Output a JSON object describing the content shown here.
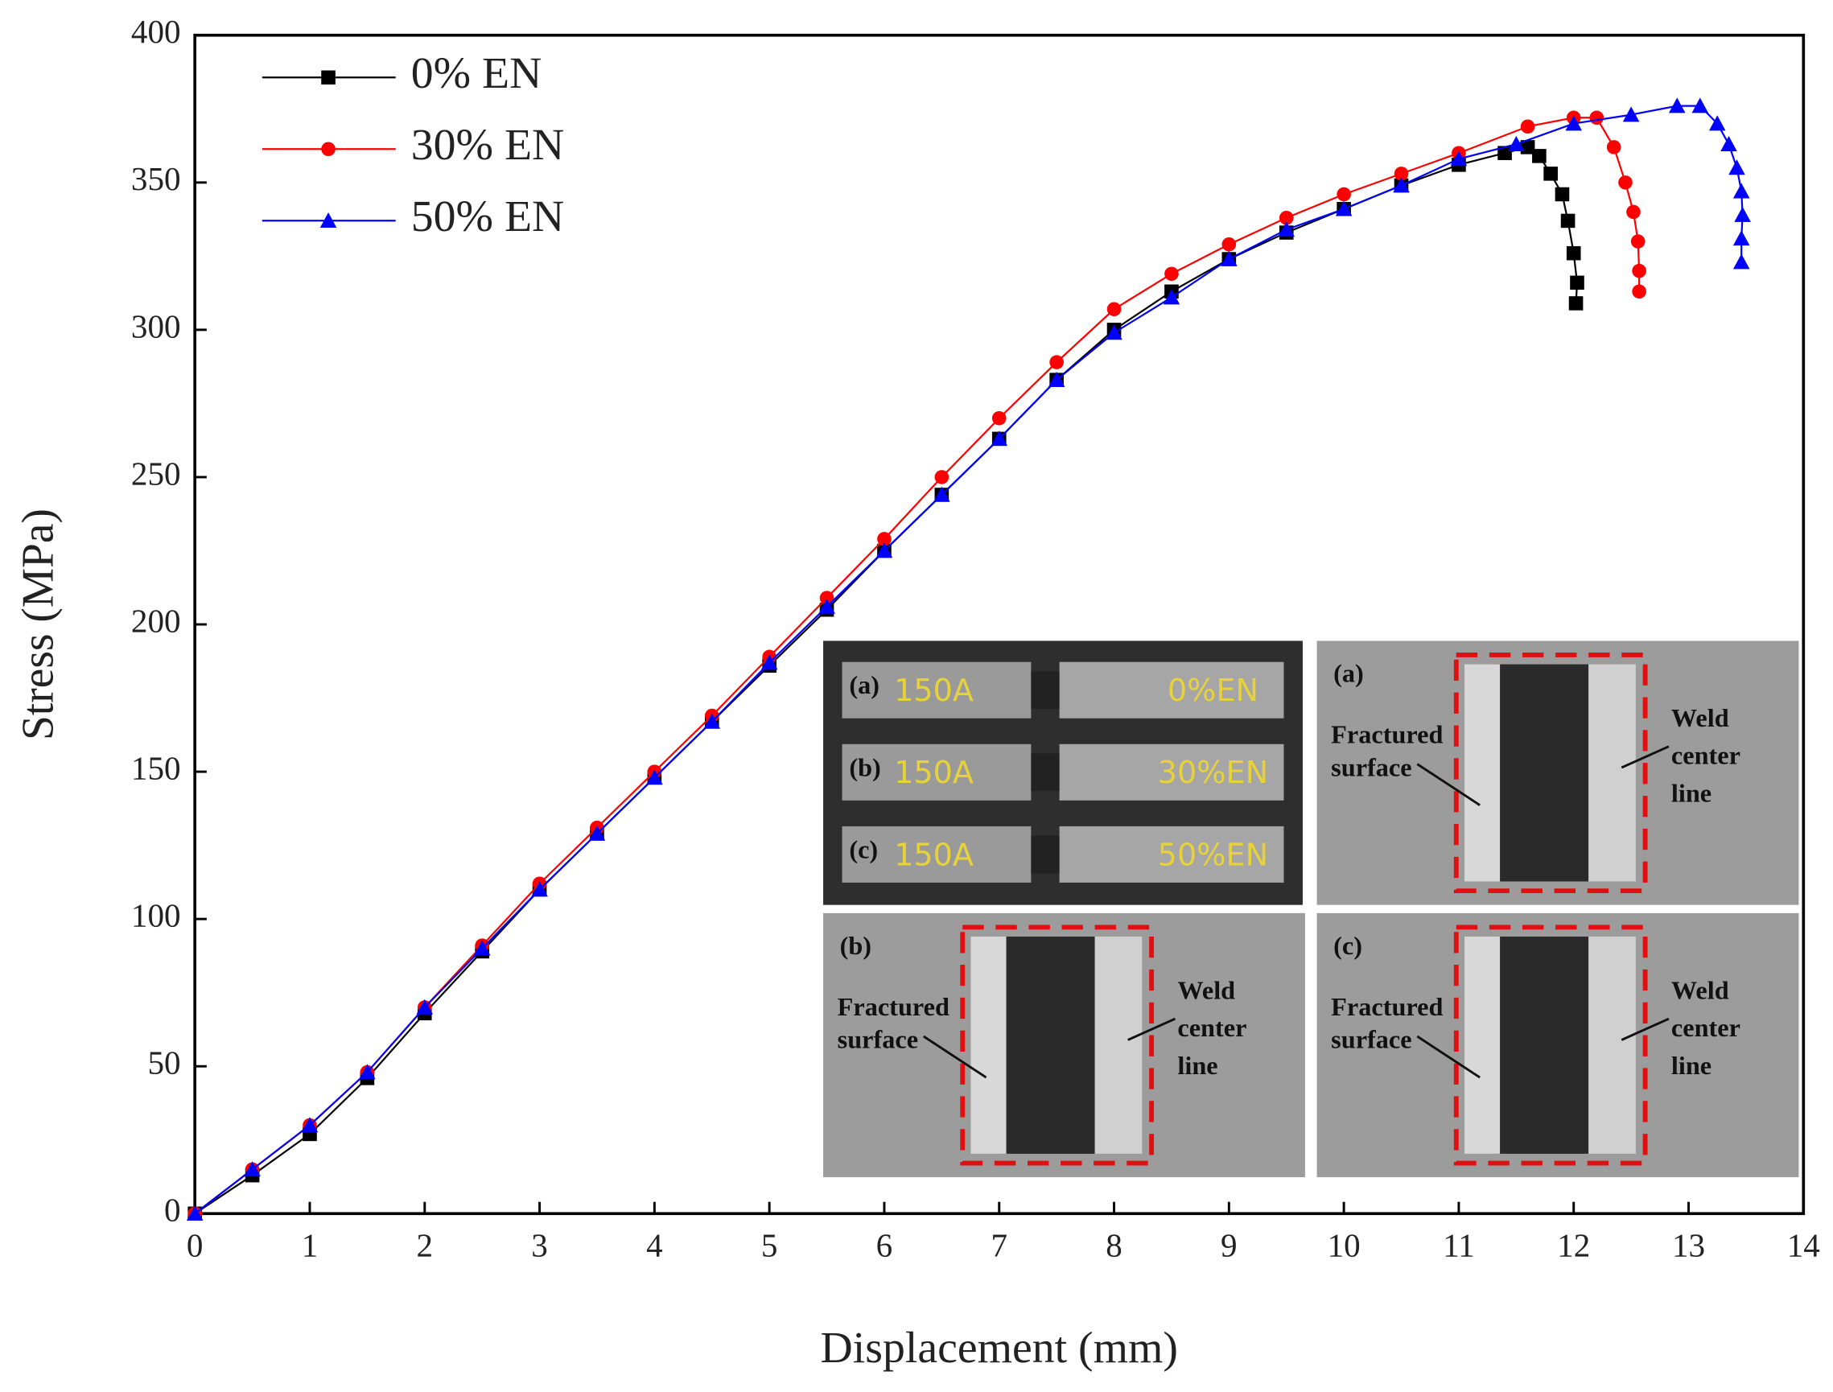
{
  "chart_data": {
    "type": "line",
    "xlabel": "Displacement (mm)",
    "ylabel": "Stress (MPa)",
    "xlim": [
      0,
      14
    ],
    "xticks": [
      0,
      1,
      2,
      3,
      4,
      5,
      6,
      7,
      8,
      9,
      10,
      11,
      12,
      13,
      14
    ],
    "ylim": [
      0,
      400
    ],
    "yticks": [
      0,
      50,
      100,
      150,
      200,
      250,
      300,
      350,
      400
    ],
    "legend": "upper left",
    "series": [
      {
        "name": "0% EN",
        "color": "#000000",
        "marker": "square",
        "x": [
          0,
          0.5,
          1,
          1.5,
          2,
          2.5,
          3,
          3.5,
          4,
          4.5,
          5,
          5.5,
          6,
          6.5,
          7,
          7.5,
          8,
          8.5,
          9,
          9.5,
          10,
          10.5,
          11,
          11.4,
          11.6,
          11.7,
          11.8,
          11.9,
          11.95,
          12.0,
          12.03,
          12.02
        ],
        "values": [
          0,
          13,
          27,
          46,
          68,
          89,
          110,
          129,
          148,
          167,
          186,
          205,
          225,
          244,
          263,
          283,
          300,
          313,
          324,
          333,
          341,
          349,
          356,
          360,
          362,
          359,
          353,
          346,
          337,
          326,
          316,
          309
        ]
      },
      {
        "name": "30% EN",
        "color": "#ff0000",
        "marker": "circle",
        "x": [
          0,
          0.5,
          1,
          1.5,
          2,
          2.5,
          3,
          3.5,
          4,
          4.5,
          5,
          5.5,
          6,
          6.5,
          7,
          7.5,
          8,
          8.5,
          9,
          9.5,
          10,
          10.5,
          11,
          11.6,
          12.0,
          12.2,
          12.35,
          12.45,
          12.52,
          12.56,
          12.57,
          12.57
        ],
        "values": [
          0,
          15,
          30,
          48,
          70,
          91,
          112,
          131,
          150,
          169,
          189,
          209,
          229,
          250,
          270,
          289,
          307,
          319,
          329,
          338,
          346,
          353,
          360,
          369,
          372,
          372,
          362,
          350,
          340,
          330,
          320,
          313
        ]
      },
      {
        "name": "50% EN",
        "color": "#0000ff",
        "marker": "triangle",
        "x": [
          0,
          0.5,
          1,
          1.5,
          2,
          2.5,
          3,
          3.5,
          4,
          4.5,
          5,
          5.5,
          6,
          6.5,
          7,
          7.5,
          8,
          8.5,
          9,
          9.5,
          10,
          10.5,
          11,
          11.5,
          12,
          12.5,
          12.9,
          13.1,
          13.25,
          13.35,
          13.42,
          13.46,
          13.47,
          13.46,
          13.46
        ],
        "values": [
          0,
          15,
          30,
          48,
          70,
          90,
          110,
          129,
          148,
          167,
          187,
          206,
          225,
          244,
          263,
          283,
          299,
          311,
          324,
          334,
          341,
          349,
          358,
          363,
          370,
          373,
          376,
          376,
          370,
          363,
          355,
          347,
          339,
          331,
          323
        ]
      }
    ]
  },
  "inset": {
    "specimens": [
      {
        "label": "(a)",
        "current": "150A",
        "en": "0%EN"
      },
      {
        "label": "(b)",
        "current": "150A",
        "en": "30%EN"
      },
      {
        "label": "(c)",
        "current": "150A",
        "en": "50%EN"
      }
    ],
    "closeups": [
      {
        "label": "(a)",
        "left": [
          "Fractured",
          "surface"
        ],
        "right": [
          "Weld",
          "center",
          "line"
        ]
      },
      {
        "label": "(b)",
        "left": [
          "Fractured",
          "surface"
        ],
        "right": [
          "Weld",
          "center",
          "line"
        ]
      },
      {
        "label": "(c)",
        "left": [
          "Fractured",
          "surface"
        ],
        "right": [
          "Weld",
          "center",
          "line"
        ]
      }
    ]
  }
}
